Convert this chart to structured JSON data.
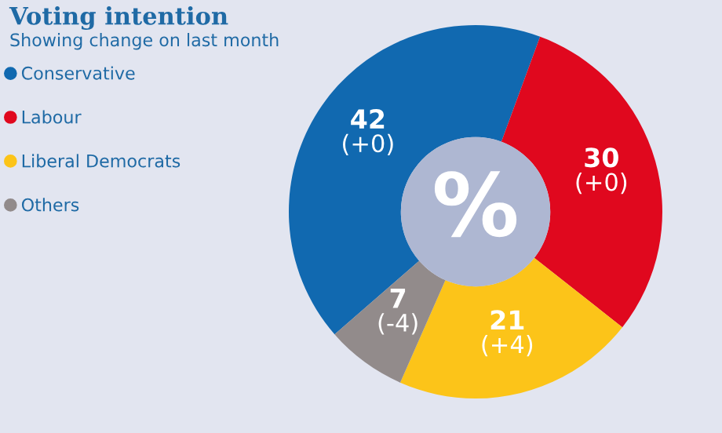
{
  "chart_data": {
    "type": "donut",
    "title": "Voting intention",
    "subtitle": "Showing change on last month",
    "categories": [
      "Conservative",
      "Labour",
      "Liberal Democrats",
      "Others"
    ],
    "values": [
      42,
      30,
      21,
      7
    ],
    "colors": [
      "#1169b0",
      "#e0081e",
      "#fcc419",
      "#928b8b"
    ],
    "value_labels": [
      "42\n(+0)",
      "30\n(+0)",
      "21\n(+4)",
      "7\n(-4)"
    ],
    "annotations": [
      "%"
    ],
    "legend": "top left"
  }
}
